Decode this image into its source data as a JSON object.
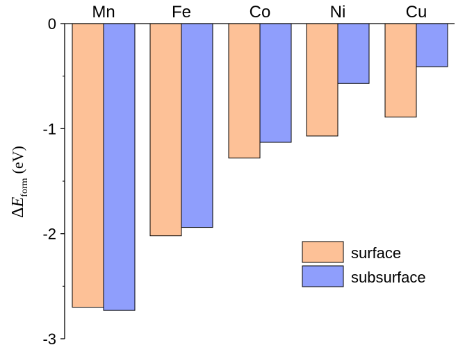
{
  "chart_data": {
    "type": "bar",
    "categories": [
      "Mn",
      "Fe",
      "Co",
      "Ni",
      "Cu"
    ],
    "series": [
      {
        "name": "surface",
        "values": [
          -2.7,
          -2.02,
          -1.28,
          -1.07,
          -0.89
        ],
        "color": "#FDC197"
      },
      {
        "name": "subsurface",
        "values": [
          -2.73,
          -1.94,
          -1.13,
          -0.57,
          -0.41
        ],
        "color": "#8F9EFC"
      }
    ],
    "title": "",
    "xlabel": "",
    "ylabel": {
      "prefix": "Δ",
      "symbol": "E",
      "subscript": "form",
      "unit": "(eV)"
    },
    "ylim": [
      -3,
      0
    ],
    "yticks": [
      "0",
      "-1",
      "-2",
      "-3"
    ],
    "yticks_values": [
      0,
      -1,
      -2,
      -3
    ],
    "category_labels_position": "top",
    "grid": false,
    "legend": {
      "position": "bottom-right",
      "entries": [
        "surface",
        "subsurface"
      ]
    },
    "colors": {
      "axis": "#000000",
      "bar_edge": "#000000",
      "background": "#ffffff"
    }
  }
}
